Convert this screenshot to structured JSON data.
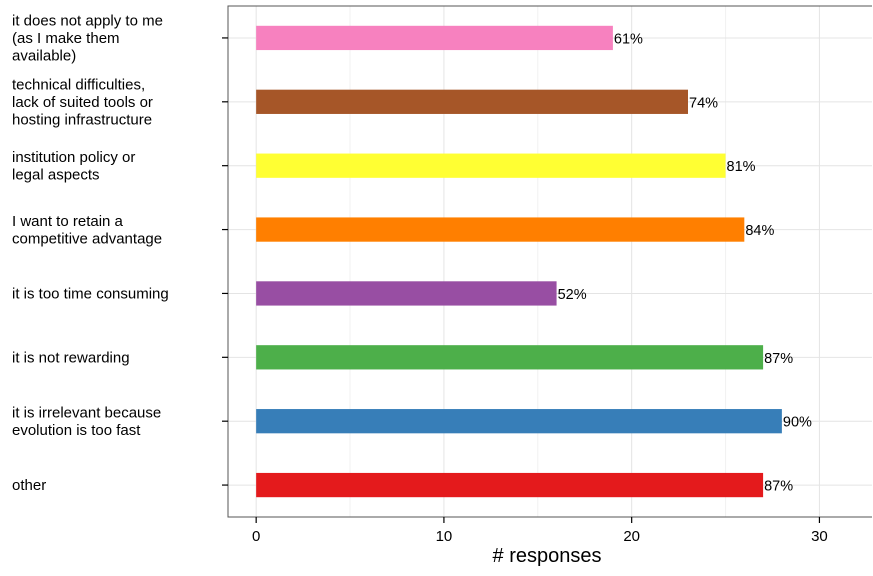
{
  "chart_data": {
    "type": "bar",
    "orientation": "horizontal",
    "xlabel": "# responses",
    "ylabel": "",
    "xlim": [
      -1.5,
      32.8
    ],
    "x_ticks": [
      0,
      10,
      20,
      30
    ],
    "grid": true,
    "legend": "none",
    "categories": [
      "it does not apply to me (as I make them available)",
      "technical difficulties, lack of suited tools or hosting infrastructure",
      "institution policy or legal aspects",
      "I want to retain a competitive advantage",
      "it is too time consuming",
      "it is not rewarding",
      "it is irrelevant because evolution is too fast",
      "other"
    ],
    "category_lines": [
      [
        "it does not apply to me",
        "(as I make them",
        "available)"
      ],
      [
        "technical difficulties,",
        "lack of suited tools or",
        "hosting infrastructure"
      ],
      [
        "institution policy or",
        "legal aspects"
      ],
      [
        "I want to retain a",
        "competitive advantage"
      ],
      [
        "it is too time consuming"
      ],
      [
        "it is not rewarding"
      ],
      [
        "it is irrelevant because",
        "evolution is too fast"
      ],
      [
        "other"
      ]
    ],
    "values": [
      19,
      23,
      25,
      26,
      16,
      27,
      28,
      27
    ],
    "data_labels": [
      "61%",
      "74%",
      "81%",
      "84%",
      "52%",
      "87%",
      "90%",
      "87%"
    ],
    "colors": [
      "#F781BF",
      "#A65628",
      "#FFFF33",
      "#FF7F00",
      "#984EA3",
      "#4DAF4A",
      "#377EB8",
      "#E41A1C"
    ]
  }
}
